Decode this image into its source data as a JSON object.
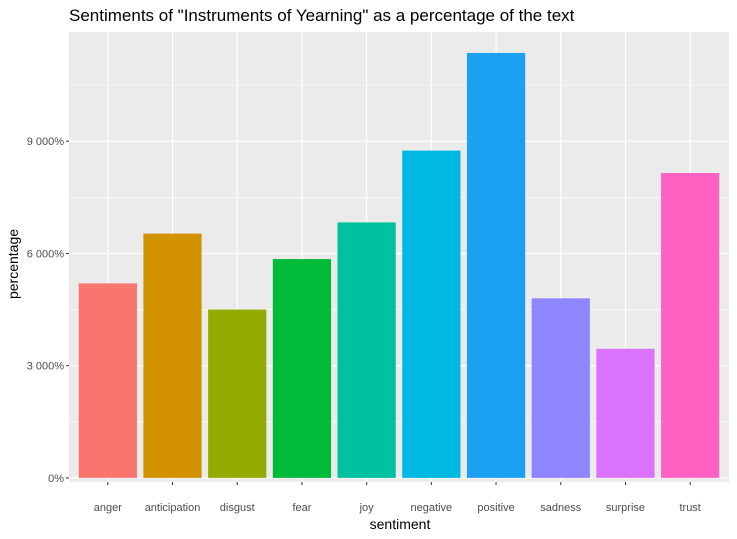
{
  "chart_data": {
    "type": "bar",
    "title": "Sentiments of \"Instruments of Yearning\" as a percentage of the text",
    "xlabel": "sentiment",
    "ylabel": "percentage",
    "categories": [
      "anger",
      "anticipation",
      "disgust",
      "fear",
      "joy",
      "negative",
      "positive",
      "sadness",
      "surprise",
      "trust"
    ],
    "values": [
      5200,
      6530,
      4500,
      5850,
      6830,
      8750,
      11360,
      4800,
      3450,
      8150
    ],
    "colors": [
      "#F8766D",
      "#D39200",
      "#93AA00",
      "#00BA38",
      "#00C19F",
      "#00B9E3",
      "#1CA1F2",
      "#8E85FF",
      "#DB72FB",
      "#FF61C3"
    ],
    "yticks": [
      {
        "value": 0,
        "label": "0%"
      },
      {
        "value": 3000,
        "label": "3 000%"
      },
      {
        "value": 6000,
        "label": "6 000%"
      },
      {
        "value": 9000,
        "label": "9 000%"
      }
    ],
    "ylim": [
      -110,
      11920
    ],
    "grid": true,
    "panel_background": "#EBEBEB",
    "grid_color": "#FFFFFF",
    "legend": "none"
  }
}
